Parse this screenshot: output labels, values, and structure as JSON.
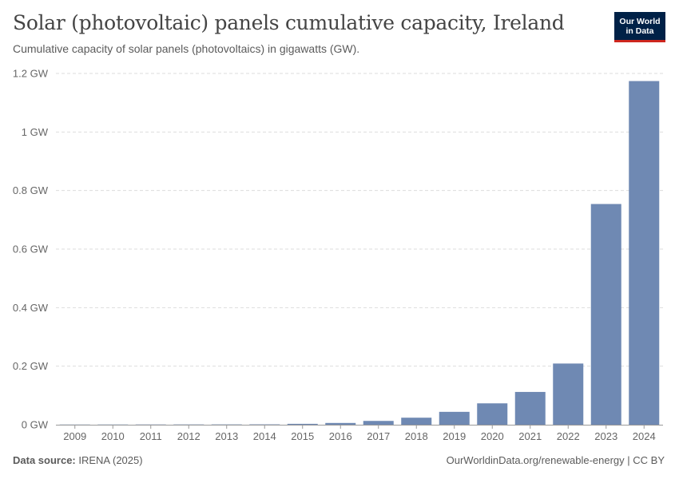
{
  "header": {
    "title": "Solar (photovoltaic) panels cumulative capacity, Ireland",
    "subtitle": "Cumulative capacity of solar panels (photovoltaics) in gigawatts (GW).",
    "logo_line1": "Our World",
    "logo_line2": "in Data"
  },
  "footer": {
    "source_label": "Data source:",
    "source_value": "IRENA (2025)",
    "link": "OurWorldinData.org/renewable-energy",
    "license": " | CC BY"
  },
  "colors": {
    "bar": "#6f89b3",
    "grid": "#dddddd",
    "logo_bg": "#002147",
    "logo_accent": "#ce261e"
  },
  "chart_data": {
    "type": "bar",
    "title": "Solar (photovoltaic) panels cumulative capacity, Ireland",
    "subtitle": "Cumulative capacity of solar panels (photovoltaics) in gigawatts (GW).",
    "unit": "GW",
    "categories": [
      "2009",
      "2010",
      "2011",
      "2012",
      "2013",
      "2014",
      "2015",
      "2016",
      "2017",
      "2018",
      "2019",
      "2020",
      "2021",
      "2022",
      "2023",
      "2024"
    ],
    "values": [
      0.0006,
      0.0007,
      0.0008,
      0.0009,
      0.001,
      0.0012,
      0.003,
      0.006,
      0.013,
      0.024,
      0.044,
      0.073,
      0.112,
      0.209,
      0.754,
      1.174
    ],
    "yticks": [
      0,
      0.2,
      0.4,
      0.6,
      0.8,
      1,
      1.2
    ],
    "ytick_labels": [
      "0 GW",
      "0.2 GW",
      "0.4 GW",
      "0.6 GW",
      "0.8 GW",
      "1 GW",
      "1.2 GW"
    ],
    "ylim": [
      0,
      1.2
    ],
    "grid": true,
    "legend": "none"
  }
}
